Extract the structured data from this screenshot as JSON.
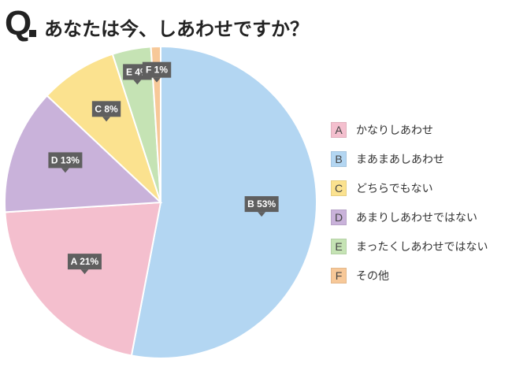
{
  "question": {
    "q_letter": "Q",
    "text": "あなたは今、しあわせですか？"
  },
  "chart_data": {
    "type": "pie",
    "title": "あなたは今、しあわせですか？",
    "slices": [
      {
        "key": "B",
        "label": "まあまあしあわせ",
        "value": 53,
        "display": "B 53%",
        "color": "#b3d6f2"
      },
      {
        "key": "A",
        "label": "かなりしあわせ",
        "value": 21,
        "display": "A 21%",
        "color": "#f4bfce"
      },
      {
        "key": "D",
        "label": "あまりしあわせではない",
        "value": 13,
        "display": "D 13%",
        "color": "#c9b2da"
      },
      {
        "key": "C",
        "label": "どちらでもない",
        "value": 8,
        "display": "C 8%",
        "color": "#fbe28f"
      },
      {
        "key": "E",
        "label": "まったくしあわせではない",
        "value": 4,
        "display": "E 4%",
        "color": "#c5e3b4"
      },
      {
        "key": "F",
        "label": "その他",
        "value": 1,
        "display": "F 1%",
        "color": "#f7c898"
      }
    ],
    "start": "12 o'clock",
    "direction": "clockwise",
    "legend_position": "right",
    "legend": [
      {
        "key": "A",
        "label": "かなりしあわせ",
        "color": "#f4bfce"
      },
      {
        "key": "B",
        "label": "まあまあしあわせ",
        "color": "#b3d6f2"
      },
      {
        "key": "C",
        "label": "どちらでもない",
        "color": "#fbe28f"
      },
      {
        "key": "D",
        "label": "あまりしあわせではない",
        "color": "#c9b2da"
      },
      {
        "key": "E",
        "label": "まったくしあわせではない",
        "color": "#c5e3b4"
      },
      {
        "key": "F",
        "label": "その他",
        "color": "#f7c898"
      }
    ]
  }
}
